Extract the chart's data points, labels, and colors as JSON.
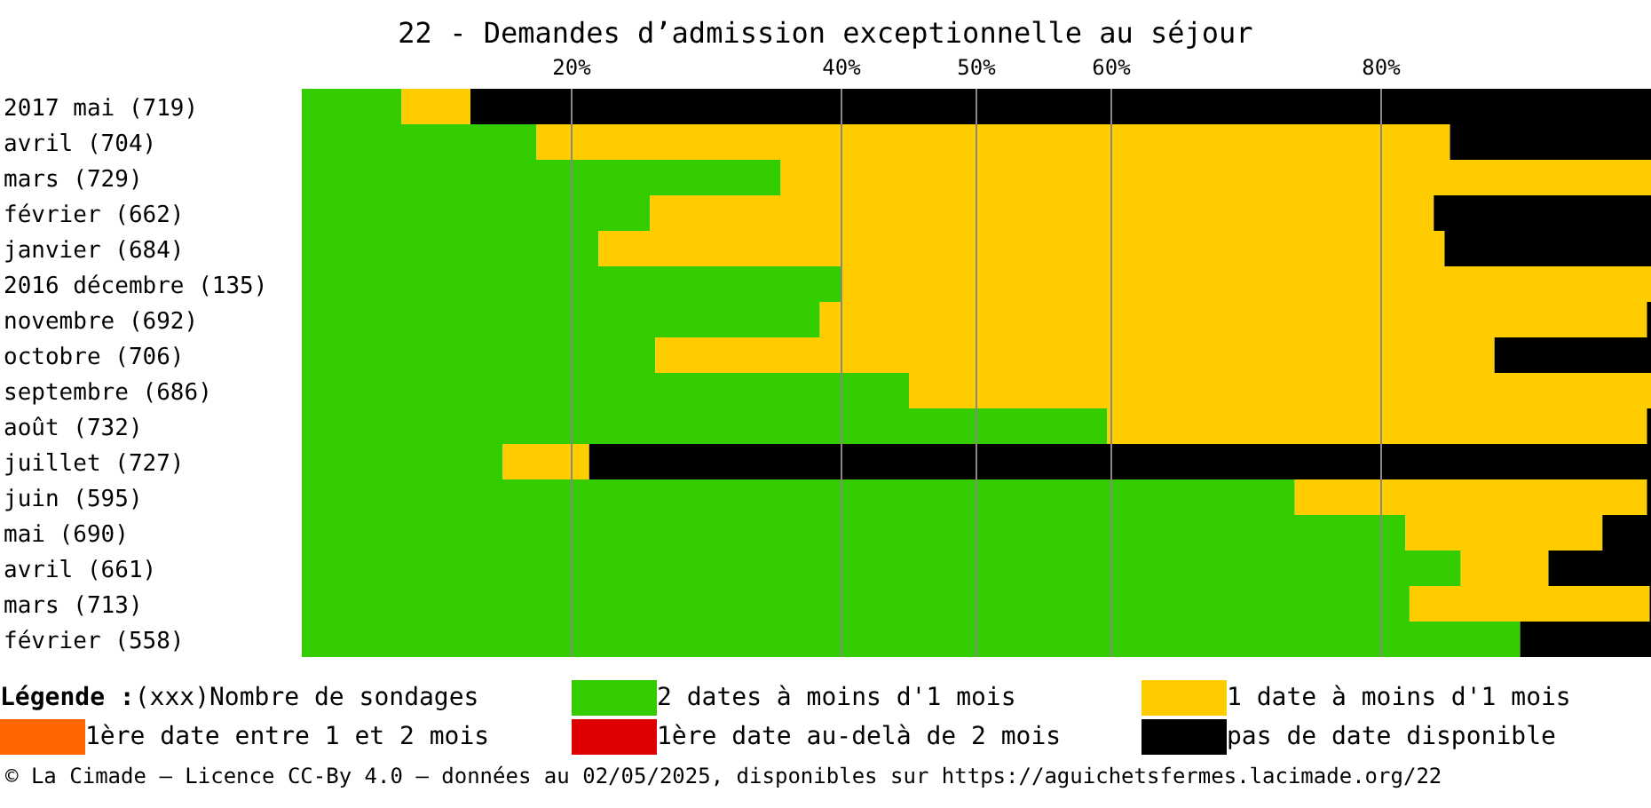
{
  "chart_data": {
    "type": "bar",
    "orientation": "horizontal",
    "stacked": true,
    "title": "22 - Demandes d’admission exceptionnelle au séjour",
    "categories": [
      "2017 mai (719)",
      "avril (704)",
      "mars (729)",
      "février (662)",
      "janvier (684)",
      "2016 décembre (135)",
      "novembre (692)",
      "octobre (706)",
      "septembre (686)",
      "août (732)",
      "juillet (727)",
      "juin (595)",
      "mai (690)",
      "avril (661)",
      "mars (713)",
      "février (558)"
    ],
    "series": [
      {
        "name": "2 dates à moins d'1 mois",
        "color": "#33cc00",
        "values": [
          7.4,
          17.4,
          35.5,
          25.8,
          22.0,
          40.0,
          38.4,
          26.2,
          45.0,
          59.7,
          14.9,
          73.6,
          81.8,
          85.9,
          82.1,
          90.3
        ]
      },
      {
        "name": "1 date à moins d'1 mois",
        "color": "#ffcc00",
        "values": [
          5.1,
          67.7,
          64.5,
          58.1,
          62.7,
          60.0,
          61.3,
          62.2,
          55.0,
          40.0,
          6.4,
          26.1,
          14.6,
          6.5,
          17.8,
          0
        ]
      },
      {
        "name": "1ère date entre 1 et 2 mois",
        "color": "#ff6600",
        "values": [
          0,
          0,
          0,
          0,
          0,
          0,
          0,
          0,
          0,
          0,
          0,
          0,
          0,
          0,
          0,
          0
        ]
      },
      {
        "name": "1ère date au-delà de 2 mois",
        "color": "#dd0000",
        "values": [
          0,
          0,
          0,
          0,
          0,
          0,
          0,
          0,
          0,
          0,
          0,
          0,
          0,
          0,
          0,
          0
        ]
      },
      {
        "name": "pas de date disponible",
        "color": "#000000",
        "values": [
          87.5,
          14.9,
          0,
          16.1,
          15.3,
          0,
          0.3,
          11.6,
          0,
          0.3,
          78.7,
          0.3,
          3.6,
          7.6,
          0.1,
          9.7
        ]
      }
    ],
    "xlim": [
      0,
      100
    ],
    "xticks": [
      {
        "value": 20,
        "label": "20%"
      },
      {
        "value": 40,
        "label": "40%"
      },
      {
        "value": 50,
        "label": "50%"
      },
      {
        "value": 60,
        "label": "60%"
      },
      {
        "value": 80,
        "label": "80%"
      }
    ],
    "grid": "x",
    "legend": "bottom",
    "legend_title": "Légende :",
    "annotations": [
      "(xxx)Nombre de sondages",
      "© La Cimade – Licence CC-By 4.0 – données au 02/05/2025, disponibles sur https://aguichetsfermes.lacimade.org/22"
    ]
  }
}
